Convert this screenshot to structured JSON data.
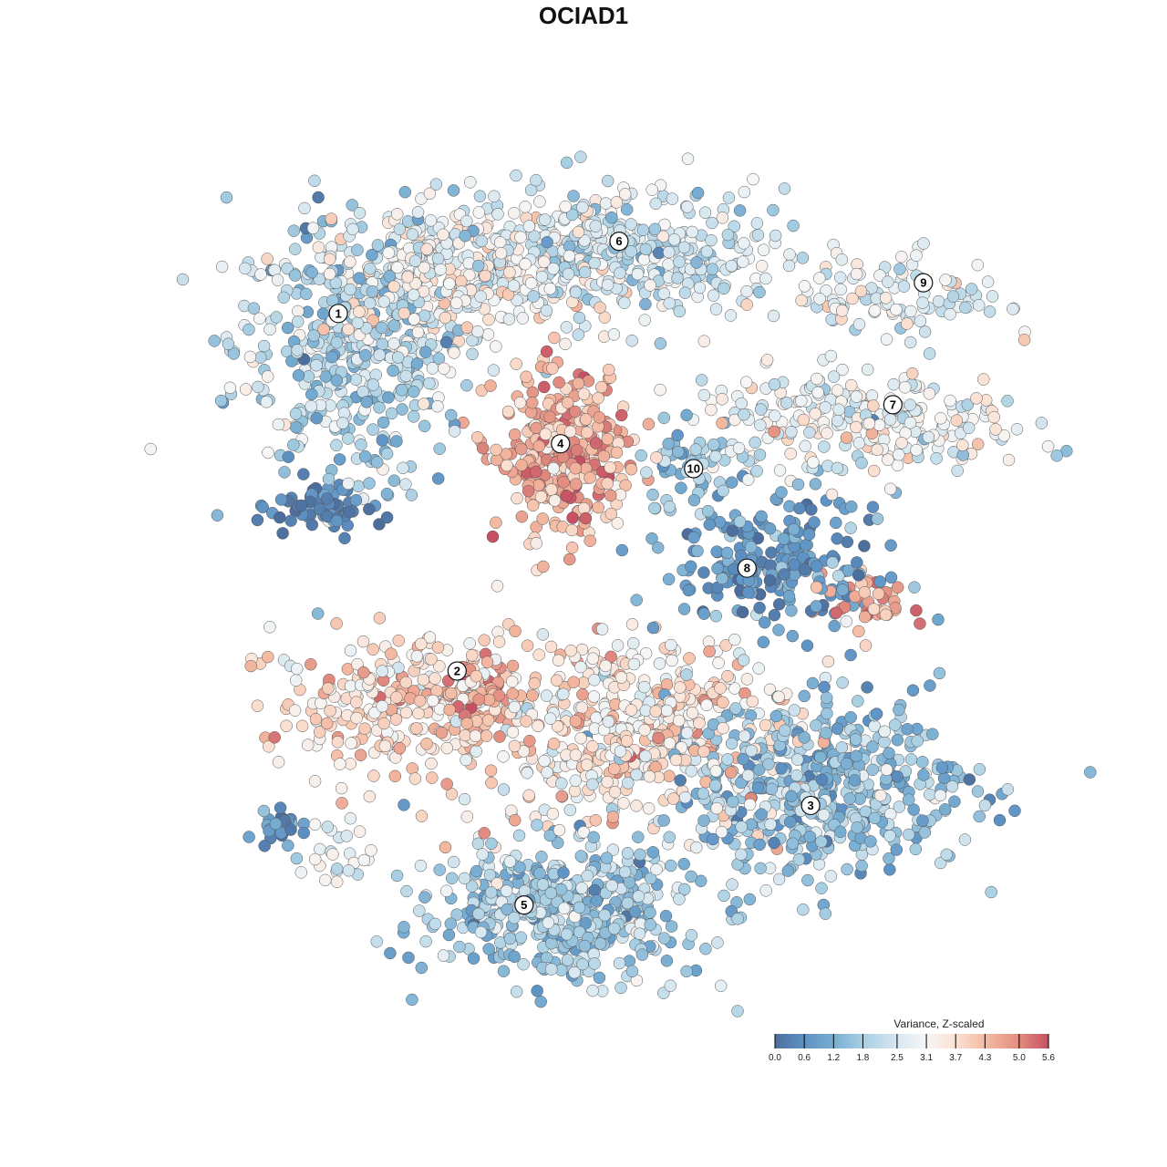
{
  "chart_data": {
    "type": "scatter",
    "title": "OCIAD1",
    "xlabel": "",
    "ylabel": "",
    "xlim": [
      -50,
      50
    ],
    "ylim": [
      -50,
      50
    ],
    "grid": false,
    "color_scale": {
      "title": "Variance, Z-scaled",
      "range": [
        0.0,
        5.6
      ],
      "ticks": [
        "0.0",
        "0.6",
        "1.2",
        "1.8",
        "2.5",
        "3.1",
        "3.7",
        "4.3",
        "5.0",
        "5.6"
      ],
      "stops": [
        {
          "v": 0.0,
          "c": "#4c6e9c"
        },
        {
          "v": 0.6,
          "c": "#5d92c5"
        },
        {
          "v": 1.2,
          "c": "#78add2"
        },
        {
          "v": 1.8,
          "c": "#a8cfe3"
        },
        {
          "v": 2.5,
          "c": "#d6e7f0"
        },
        {
          "v": 3.1,
          "c": "#f6f6f6"
        },
        {
          "v": 3.7,
          "c": "#fbe1d3"
        },
        {
          "v": 4.3,
          "c": "#f5bba2"
        },
        {
          "v": 5.0,
          "c": "#e28c80"
        },
        {
          "v": 5.6,
          "c": "#c65063"
        }
      ],
      "legend_position": "bottom-right"
    },
    "clusters": [
      {
        "label": "1",
        "x": -31.6,
        "y": 32.0
      },
      {
        "label": "2",
        "x": -17.6,
        "y": -11.1
      },
      {
        "label": "3",
        "x": 24.1,
        "y": -27.3
      },
      {
        "label": "4",
        "x": -5.4,
        "y": 16.3
      },
      {
        "label": "5",
        "x": -9.7,
        "y": -39.3
      },
      {
        "label": "6",
        "x": 1.5,
        "y": 40.7
      },
      {
        "label": "7",
        "x": 33.8,
        "y": 21.0
      },
      {
        "label": "8",
        "x": 16.6,
        "y": 1.3
      },
      {
        "label": "9",
        "x": 37.4,
        "y": 35.7
      },
      {
        "label": "10",
        "x": 10.3,
        "y": 13.3
      }
    ],
    "point_groups": [
      {
        "cx": -30,
        "cy": 28,
        "sx": 7,
        "sy": 8,
        "n": 450,
        "mean": 2.0,
        "sd": 0.7
      },
      {
        "cx": -19,
        "cy": 37,
        "sx": 7,
        "sy": 4,
        "n": 300,
        "mean": 3.1,
        "sd": 0.5
      },
      {
        "cx": -34,
        "cy": 8.5,
        "sx": 3,
        "sy": 1.5,
        "n": 60,
        "mean": 0.4,
        "sd": 0.3
      },
      {
        "cx": 1,
        "cy": 39,
        "sx": 10,
        "sy": 4,
        "n": 420,
        "mean": 2.4,
        "sd": 0.6
      },
      {
        "cx": -5,
        "cy": 15,
        "sx": 4,
        "sy": 5,
        "n": 320,
        "mean": 4.4,
        "sd": 0.6
      },
      {
        "cx": 35,
        "cy": 34,
        "sx": 6,
        "sy": 2.5,
        "n": 110,
        "mean": 2.8,
        "sd": 0.6
      },
      {
        "cx": 30,
        "cy": 19,
        "sx": 10,
        "sy": 3,
        "n": 260,
        "mean": 2.9,
        "sd": 0.6
      },
      {
        "cx": 10,
        "cy": 13,
        "sx": 3,
        "sy": 3,
        "n": 60,
        "mean": 1.5,
        "sd": 0.6
      },
      {
        "cx": 20,
        "cy": 2,
        "sx": 6,
        "sy": 4,
        "n": 220,
        "mean": 0.8,
        "sd": 0.5
      },
      {
        "cx": 31,
        "cy": -2.5,
        "sx": 2.5,
        "sy": 2,
        "n": 45,
        "mean": 4.6,
        "sd": 0.6
      },
      {
        "cx": -25,
        "cy": -15,
        "sx": 7,
        "sy": 4,
        "n": 260,
        "mean": 3.7,
        "sd": 0.6
      },
      {
        "cx": -14,
        "cy": -14,
        "sx": 2,
        "sy": 2,
        "n": 50,
        "mean": 4.7,
        "sd": 0.4
      },
      {
        "cx": 2,
        "cy": -18,
        "sx": 10,
        "sy": 6,
        "n": 520,
        "mean": 3.5,
        "sd": 0.7
      },
      {
        "cx": 25,
        "cy": -25,
        "sx": 9,
        "sy": 5,
        "n": 520,
        "mean": 1.6,
        "sd": 0.6
      },
      {
        "cx": -5,
        "cy": -40,
        "sx": 8,
        "sy": 4,
        "n": 520,
        "mean": 1.8,
        "sd": 0.6
      },
      {
        "cx": -39,
        "cy": -30,
        "sx": 1.5,
        "sy": 1,
        "n": 25,
        "mean": 0.7,
        "sd": 0.4
      },
      {
        "cx": -32,
        "cy": -33,
        "sx": 2,
        "sy": 2,
        "n": 25,
        "mean": 2.8,
        "sd": 0.5
      }
    ]
  }
}
